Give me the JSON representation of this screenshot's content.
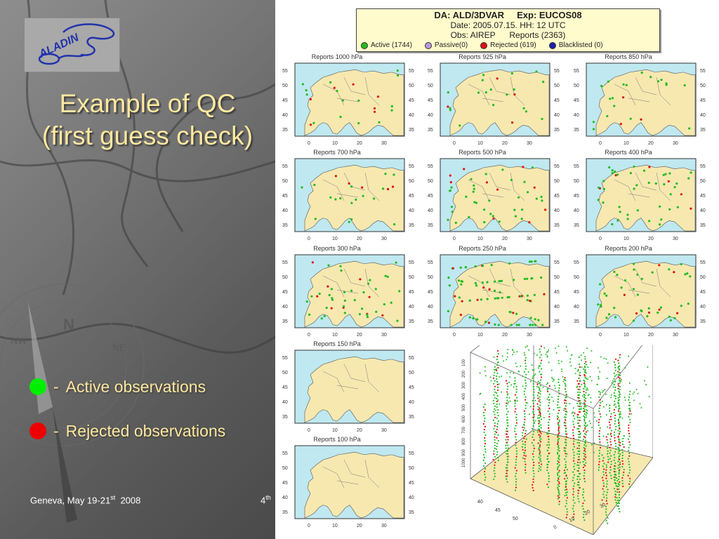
{
  "slide": {
    "logo_text": "ALADIN",
    "title_line1": "Example of QC",
    "title_line2": "(first guess check)",
    "legend": [
      {
        "symbol": "●",
        "dash": "-",
        "label": "Active observations",
        "color": "#00ee00"
      },
      {
        "symbol": "●",
        "dash": "-",
        "label": "Rejected observations",
        "color": "#ee0000"
      }
    ],
    "footer": {
      "location_date_prefix": "Geneva, May 19-21",
      "date_sup": "st",
      "year": "2008",
      "page_number": "4",
      "page_sup": "th"
    }
  },
  "info_box": {
    "title": "DA: ALD/3DVAR     Exp: EUCOS08",
    "date_line": "Date: 2005.07.15. HH: 12 UTC",
    "obs_line": "Obs: AIREP      Reports (2363)",
    "legend": [
      {
        "label": "Active (1744)",
        "color": "#22bb22"
      },
      {
        "label": "Passive(0)",
        "color": "#bb99dd"
      },
      {
        "label": "Rejected (619)",
        "color": "#dd1111"
      },
      {
        "label": "Blacklisted (0)",
        "color": "#1a22aa"
      }
    ]
  },
  "maps": {
    "lat_ticks": [
      "55",
      "50",
      "45",
      "40",
      "35"
    ],
    "lon_ticks": [
      "0",
      "10",
      "20",
      "30"
    ],
    "panels": [
      {
        "title": "Reports 1000 hPa",
        "density": "low"
      },
      {
        "title": "Reports 925 hPa",
        "density": "low"
      },
      {
        "title": "Reports 850 hPa",
        "density": "low"
      },
      {
        "title": "Reports 700 hPa",
        "density": "low"
      },
      {
        "title": "Reports 500 hPa",
        "density": "medium"
      },
      {
        "title": "Reports 400 hPa",
        "density": "medium"
      },
      {
        "title": "Reports 300 hPa",
        "density": "medium"
      },
      {
        "title": "Reports 250 hPa",
        "density": "high"
      },
      {
        "title": "Reports 200 hPa",
        "density": "medium"
      },
      {
        "title": "Reports 150 hPa",
        "density": "none"
      },
      {
        "title": "Reports 100 hPa",
        "density": "none"
      }
    ]
  },
  "plot3d": {
    "z_ticks": [
      "100",
      "200",
      "300",
      "400",
      "500",
      "600",
      "700",
      "800",
      "900",
      "1000"
    ],
    "x_ticks": [
      "0",
      "10",
      "20",
      "30"
    ],
    "y_ticks": [
      "40",
      "45",
      "50"
    ]
  },
  "colors": {
    "active": "#22bb22",
    "rejected": "#dd1111",
    "sea": "#bfe8f0",
    "land": "#f7e8b0"
  }
}
